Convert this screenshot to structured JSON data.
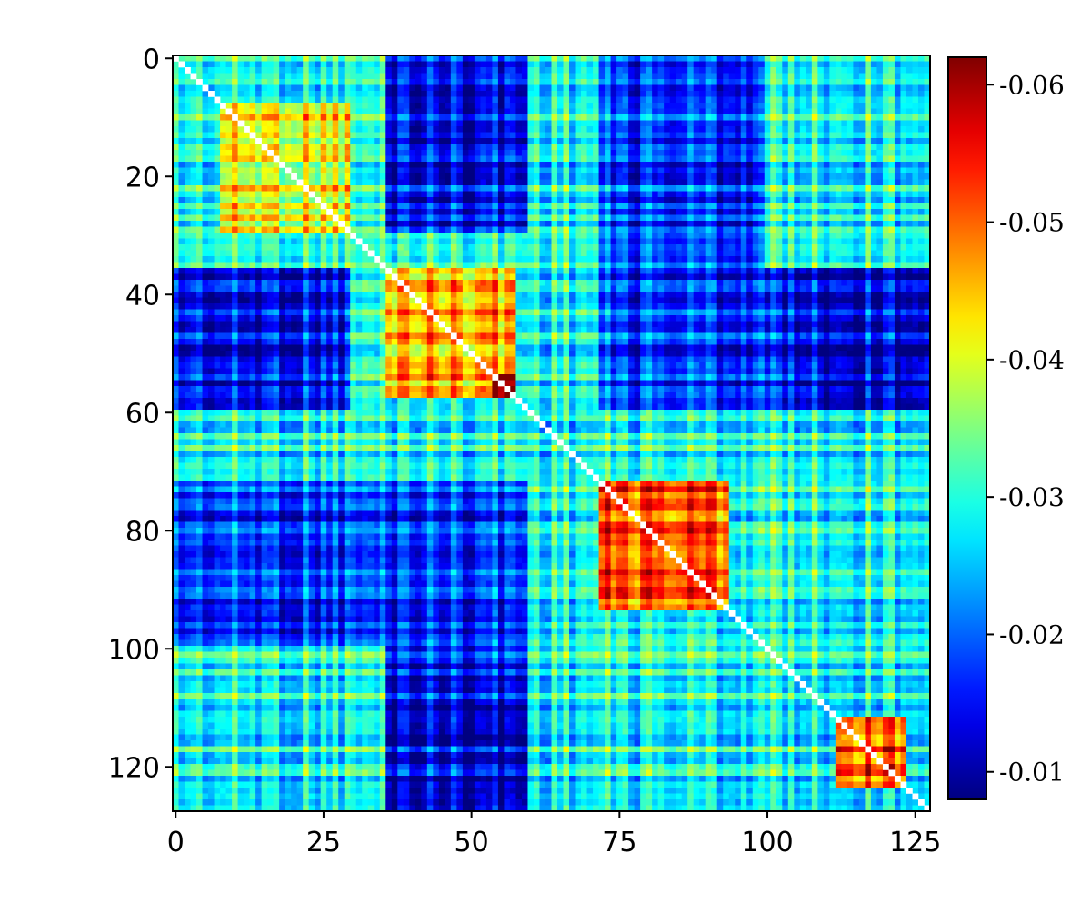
{
  "chart_data": {
    "type": "heatmap",
    "title": "",
    "xlabel": "",
    "ylabel": "",
    "size": 128,
    "xlim": [
      0,
      128
    ],
    "ylim": [
      128,
      0
    ],
    "x_ticks": [
      0,
      25,
      50,
      75,
      100,
      125
    ],
    "y_ticks": [
      0,
      20,
      40,
      60,
      80,
      100,
      120
    ],
    "colormap": "jet",
    "colorbar_range": [
      -0.008,
      -0.062
    ],
    "colorbar_ticks": [
      "-0.06",
      "-0.05",
      "-0.04",
      "-0.03",
      "-0.02",
      "-0.01"
    ],
    "colorbar_tick_values": [
      -0.06,
      -0.05,
      -0.04,
      -0.03,
      -0.02,
      -0.01
    ],
    "diagonal": "white (undefined)",
    "background_value": -0.03,
    "blocks": [
      {
        "rows": [
          8,
          14
        ],
        "cols": [
          8,
          14
        ],
        "value": -0.062
      },
      {
        "rows": [
          36,
          58
        ],
        "cols": [
          36,
          58
        ],
        "value": -0.047
      },
      {
        "rows": [
          54,
          58
        ],
        "cols": [
          54,
          58
        ],
        "value": -0.062
      },
      {
        "rows": [
          72,
          94
        ],
        "cols": [
          72,
          94
        ],
        "value": -0.051
      },
      {
        "rows": [
          112,
          124
        ],
        "cols": [
          112,
          124
        ],
        "value": -0.053
      },
      {
        "rows": [
          8,
          30
        ],
        "cols": [
          8,
          30
        ],
        "value": -0.042
      },
      {
        "rows": [
          0,
          30
        ],
        "cols": [
          36,
          60
        ],
        "value": -0.016
      },
      {
        "rows": [
          36,
          60
        ],
        "cols": [
          72,
          128
        ],
        "value": -0.016
      },
      {
        "rows": [
          72,
          100
        ],
        "cols": [
          0,
          60
        ],
        "value": -0.018
      },
      {
        "rows": [
          108,
          128
        ],
        "cols": [
          36,
          60
        ],
        "value": -0.015
      },
      {
        "rows": [
          40,
          60
        ],
        "cols": [
          6,
          16
        ],
        "value": -0.014
      },
      {
        "rows": [
          52,
          60
        ],
        "cols": [
          110,
          126
        ],
        "value": -0.013
      }
    ]
  }
}
